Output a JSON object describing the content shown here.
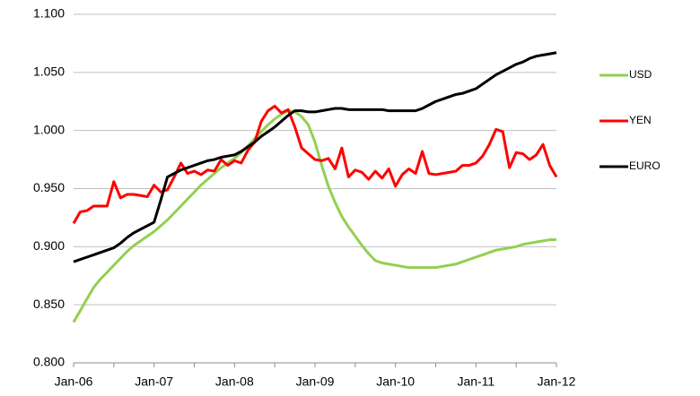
{
  "chart_data": {
    "type": "line",
    "categories": [
      "Jan-06",
      null,
      null,
      null,
      null,
      null,
      null,
      null,
      null,
      null,
      null,
      null,
      "Jan-07",
      null,
      null,
      null,
      null,
      null,
      null,
      null,
      null,
      null,
      null,
      null,
      "Jan-08",
      null,
      null,
      null,
      null,
      null,
      null,
      null,
      null,
      null,
      null,
      null,
      "Jan-09",
      null,
      null,
      null,
      null,
      null,
      null,
      null,
      null,
      null,
      null,
      null,
      "Jan-10",
      null,
      null,
      null,
      null,
      null,
      null,
      null,
      null,
      null,
      null,
      null,
      "Jan-11",
      null,
      null,
      null,
      null,
      null,
      null,
      null,
      null,
      null,
      null,
      null,
      "Jan-12"
    ],
    "series": [
      {
        "name": "USD",
        "color": "#92d050",
        "values": [
          0.835,
          0.845,
          0.855,
          0.865,
          0.872,
          0.878,
          0.884,
          0.89,
          0.896,
          0.901,
          0.905,
          0.909,
          0.913,
          0.918,
          0.923,
          0.929,
          0.935,
          0.941,
          0.947,
          0.953,
          0.958,
          0.963,
          0.968,
          0.972,
          0.976,
          0.981,
          0.987,
          0.993,
          0.999,
          1.005,
          1.01,
          1.014,
          1.017,
          1.016,
          1.012,
          1.005,
          0.99,
          0.97,
          0.952,
          0.938,
          0.926,
          0.917,
          0.909,
          0.901,
          0.894,
          0.888,
          0.886,
          0.885,
          0.884,
          0.883,
          0.882,
          0.882,
          0.882,
          0.882,
          0.882,
          0.883,
          0.884,
          0.885,
          0.887,
          0.889,
          0.891,
          0.893,
          0.895,
          0.897,
          0.898,
          0.899,
          0.9,
          0.902,
          0.903,
          0.904,
          0.905,
          0.906,
          0.906
        ]
      },
      {
        "name": "YEN",
        "color": "#ff0000",
        "values": [
          0.92,
          0.93,
          0.931,
          0.935,
          0.935,
          0.935,
          0.956,
          0.942,
          0.945,
          0.945,
          0.944,
          0.943,
          0.953,
          0.947,
          0.949,
          0.96,
          0.972,
          0.963,
          0.965,
          0.962,
          0.966,
          0.965,
          0.975,
          0.97,
          0.974,
          0.972,
          0.983,
          0.99,
          1.008,
          1.017,
          1.021,
          1.015,
          1.018,
          1.003,
          0.985,
          0.98,
          0.975,
          0.974,
          0.976,
          0.967,
          0.985,
          0.96,
          0.966,
          0.964,
          0.958,
          0.965,
          0.959,
          0.967,
          0.952,
          0.962,
          0.967,
          0.963,
          0.982,
          0.963,
          0.962,
          0.963,
          0.964,
          0.965,
          0.97,
          0.97,
          0.972,
          0.978,
          0.988,
          1.001,
          0.999,
          0.968,
          0.981,
          0.98,
          0.975,
          0.979,
          0.988,
          0.97,
          0.96
        ]
      },
      {
        "name": "EURO",
        "color": "#000000",
        "values": [
          0.887,
          0.889,
          0.891,
          0.893,
          0.895,
          0.897,
          0.899,
          0.903,
          0.908,
          0.912,
          0.915,
          0.918,
          0.921,
          0.94,
          0.96,
          0.963,
          0.966,
          0.968,
          0.97,
          0.972,
          0.974,
          0.975,
          0.977,
          0.978,
          0.979,
          0.982,
          0.986,
          0.99,
          0.995,
          0.999,
          1.003,
          1.008,
          1.013,
          1.017,
          1.017,
          1.016,
          1.016,
          1.017,
          1.018,
          1.019,
          1.019,
          1.018,
          1.018,
          1.018,
          1.018,
          1.018,
          1.018,
          1.017,
          1.017,
          1.017,
          1.017,
          1.017,
          1.019,
          1.022,
          1.025,
          1.027,
          1.029,
          1.031,
          1.032,
          1.034,
          1.036,
          1.04,
          1.044,
          1.048,
          1.051,
          1.054,
          1.057,
          1.059,
          1.062,
          1.064,
          1.065,
          1.066,
          1.067
        ]
      }
    ],
    "ylim": [
      0.8,
      1.1
    ],
    "yticks": [
      {
        "value": 0.8,
        "label": "0.800"
      },
      {
        "value": 0.85,
        "label": "0.850"
      },
      {
        "value": 0.9,
        "label": "0.900"
      },
      {
        "value": 0.95,
        "label": "0.950"
      },
      {
        "value": 1.0,
        "label": "1.000"
      },
      {
        "value": 1.05,
        "label": "1.050"
      },
      {
        "value": 1.1,
        "label": "1.100"
      }
    ],
    "grid": true,
    "legend": "right"
  }
}
